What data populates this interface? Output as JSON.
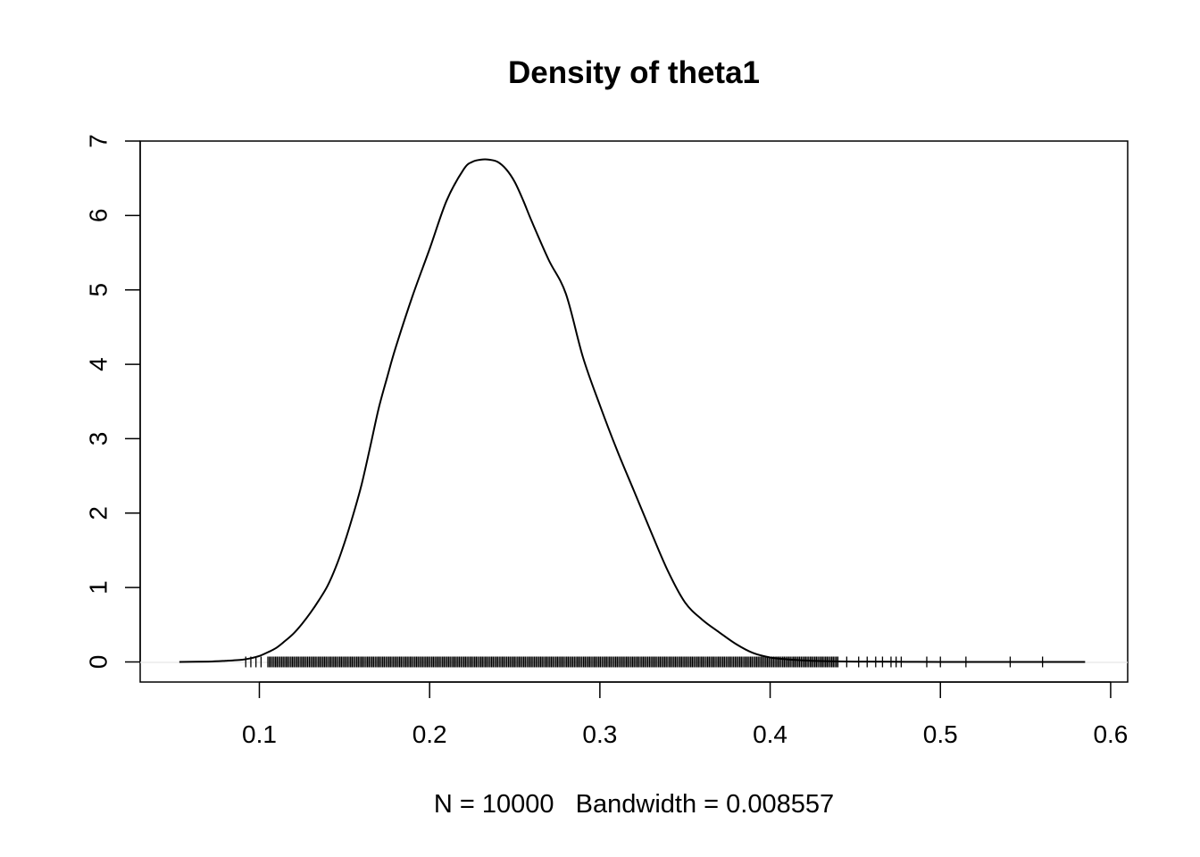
{
  "chart_data": {
    "type": "line",
    "title": "Density of theta1",
    "xlabel": "N = 10000   Bandwidth = 0.008557",
    "ylabel": "",
    "xlim": [
      0.03,
      0.61
    ],
    "ylim": [
      -0.27,
      7.0
    ],
    "grid": false,
    "legend": "none",
    "x_ticks": [
      0.1,
      0.2,
      0.3,
      0.4,
      0.5,
      0.6
    ],
    "x_tick_labels": [
      "0.1",
      "0.2",
      "0.3",
      "0.4",
      "0.5",
      "0.6"
    ],
    "y_ticks": [
      0,
      1,
      2,
      3,
      4,
      5,
      6,
      7
    ],
    "y_tick_labels": [
      "0",
      "1",
      "2",
      "3",
      "4",
      "5",
      "6",
      "7"
    ],
    "series": [
      {
        "x": [
          0.053,
          0.07,
          0.08,
          0.09,
          0.095,
          0.1,
          0.105,
          0.11,
          0.115,
          0.12,
          0.125,
          0.13,
          0.135,
          0.14,
          0.145,
          0.15,
          0.155,
          0.16,
          0.165,
          0.17,
          0.175,
          0.18,
          0.19,
          0.2,
          0.21,
          0.22,
          0.225,
          0.23,
          0.235,
          0.24,
          0.245,
          0.25,
          0.255,
          0.26,
          0.27,
          0.28,
          0.29,
          0.3,
          0.31,
          0.32,
          0.33,
          0.34,
          0.35,
          0.36,
          0.37,
          0.38,
          0.39,
          0.4,
          0.41,
          0.42,
          0.43,
          0.44,
          0.45,
          0.46,
          0.48,
          0.5,
          0.53,
          0.56,
          0.585
        ],
        "y": [
          0.0,
          0.005,
          0.015,
          0.03,
          0.05,
          0.08,
          0.13,
          0.19,
          0.28,
          0.38,
          0.51,
          0.66,
          0.83,
          1.02,
          1.28,
          1.6,
          1.97,
          2.38,
          2.88,
          3.4,
          3.82,
          4.22,
          4.92,
          5.55,
          6.2,
          6.62,
          6.72,
          6.75,
          6.75,
          6.72,
          6.62,
          6.45,
          6.2,
          5.92,
          5.4,
          4.95,
          4.1,
          3.45,
          2.85,
          2.3,
          1.75,
          1.22,
          0.8,
          0.57,
          0.4,
          0.24,
          0.12,
          0.06,
          0.035,
          0.02,
          0.012,
          0.008,
          0.005,
          0.004,
          0.002,
          0.0,
          0.0,
          0.0,
          0.0
        ]
      }
    ],
    "rug": {
      "dense_range": [
        0.105,
        0.44
      ],
      "outliers": [
        0.092,
        0.095,
        0.098,
        0.101,
        0.445,
        0.452,
        0.457,
        0.462,
        0.466,
        0.471,
        0.474,
        0.477,
        0.492,
        0.5,
        0.515,
        0.541,
        0.56
      ]
    }
  }
}
